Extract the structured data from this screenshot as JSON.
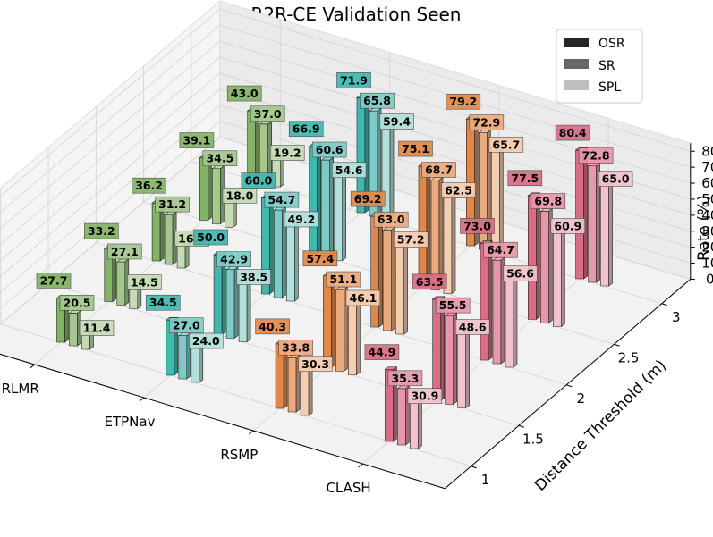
{
  "chart_data": {
    "type": "bar3d",
    "title": "R2R-CE Validation Seen",
    "zlabel": "Rate (%)",
    "ylabel": "Distance Threshold (m)",
    "methods": [
      "RLMR",
      "ETPNav",
      "RSMP",
      "CLASH"
    ],
    "thresholds": [
      "1",
      "1.5",
      "2",
      "2.5",
      "3"
    ],
    "zlim": [
      0,
      85
    ],
    "zticks": [
      0,
      10,
      20,
      30,
      40,
      50,
      60,
      70,
      80
    ],
    "metrics": [
      "OSR",
      "SR",
      "SPL"
    ],
    "legend": [
      {
        "name": "OSR",
        "color": "#262626"
      },
      {
        "name": "SR",
        "color": "#666666"
      },
      {
        "name": "SPL",
        "color": "#bfbfbf"
      }
    ],
    "method_colors": [
      [
        "#82b366",
        "#a3c78d",
        "#c4dbb4"
      ],
      [
        "#40b8b0",
        "#7ccbc6",
        "#b3e0dc"
      ],
      [
        "#e0884a",
        "#eba97d",
        "#f5cdb0"
      ],
      [
        "#d96d85",
        "#e697a8",
        "#f0c3cd"
      ]
    ],
    "values": [
      [
        [
          27.7,
          20.5,
          11.4
        ],
        [
          33.2,
          27.1,
          14.5
        ],
        [
          36.2,
          31.2,
          16.5
        ],
        [
          39.1,
          34.5,
          18.0
        ],
        [
          43.0,
          37.0,
          19.2
        ]
      ],
      [
        [
          34.5,
          27.0,
          24.0
        ],
        [
          50.0,
          42.9,
          38.5
        ],
        [
          60.0,
          54.7,
          49.2
        ],
        [
          66.9,
          60.6,
          54.6
        ],
        [
          71.9,
          65.8,
          59.4
        ]
      ],
      [
        [
          40.3,
          33.8,
          30.3
        ],
        [
          57.4,
          51.1,
          46.1
        ],
        [
          69.2,
          63.0,
          57.2
        ],
        [
          75.1,
          68.7,
          62.5
        ],
        [
          79.2,
          72.9,
          65.7
        ]
      ],
      [
        [
          44.9,
          35.3,
          30.9
        ],
        [
          63.5,
          55.5,
          48.6
        ],
        [
          73.0,
          64.7,
          56.6
        ],
        [
          77.5,
          69.8,
          60.9
        ],
        [
          80.4,
          72.8,
          65.0
        ]
      ]
    ]
  }
}
